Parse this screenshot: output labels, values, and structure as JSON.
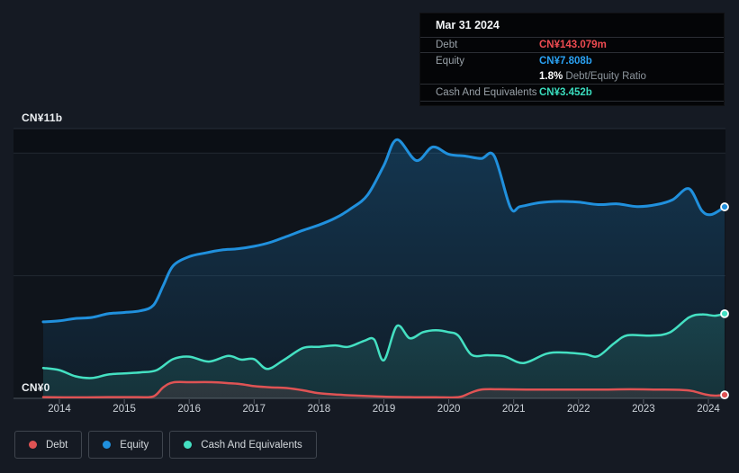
{
  "page": {
    "background": "#151a23",
    "plot_background": "#0f141b"
  },
  "tooltip": {
    "date": "Mar 31 2024",
    "debt_label": "Debt",
    "debt_value": "CN¥143.079m",
    "equity_label": "Equity",
    "equity_value": "CN¥7.808b",
    "ratio_value": "1.8%",
    "ratio_label": "Debt/Equity Ratio",
    "cash_label": "Cash And Equivalents",
    "cash_value": "CN¥3.452b",
    "colors": {
      "debt": "#ef4b51",
      "equity": "#2aa1f2",
      "cash": "#3adcbd"
    }
  },
  "axis": {
    "y_top_label": "CN¥11b",
    "y_zero_label": "CN¥0",
    "x_labels": [
      "2014",
      "2015",
      "2016",
      "2017",
      "2018",
      "2019",
      "2020",
      "2021",
      "2022",
      "2023",
      "2024"
    ]
  },
  "legend": {
    "items": [
      {
        "label": "Debt",
        "color": "#df5354"
      },
      {
        "label": "Equity",
        "color": "#2090dd"
      },
      {
        "label": "Cash And Equivalents",
        "color": "#44e0c2"
      }
    ]
  },
  "chart_data": {
    "type": "area",
    "x_unit": "year",
    "x_range": [
      2013.75,
      2024.25
    ],
    "y_unit": "CN¥ billions",
    "y_range": [
      0,
      11
    ],
    "gridlines_y": [
      11,
      10,
      5,
      0
    ],
    "x_ticks": [
      2014,
      2015,
      2016,
      2017,
      2018,
      2019,
      2020,
      2021,
      2022,
      2023,
      2024
    ],
    "legend_position": "bottom-left",
    "series": [
      {
        "name": "Equity",
        "color": "#2090dd",
        "line_width": 3,
        "points": [
          [
            2013.75,
            3.12
          ],
          [
            2014,
            3.16
          ],
          [
            2014.25,
            3.26
          ],
          [
            2014.5,
            3.3
          ],
          [
            2014.75,
            3.45
          ],
          [
            2015,
            3.5
          ],
          [
            2015.25,
            3.57
          ],
          [
            2015.45,
            3.8
          ],
          [
            2015.6,
            4.6
          ],
          [
            2015.75,
            5.4
          ],
          [
            2016,
            5.78
          ],
          [
            2016.25,
            5.93
          ],
          [
            2016.5,
            6.05
          ],
          [
            2016.75,
            6.1
          ],
          [
            2017,
            6.2
          ],
          [
            2017.25,
            6.36
          ],
          [
            2017.5,
            6.6
          ],
          [
            2017.75,
            6.85
          ],
          [
            2018,
            7.07
          ],
          [
            2018.25,
            7.35
          ],
          [
            2018.5,
            7.75
          ],
          [
            2018.75,
            8.3
          ],
          [
            2019,
            9.5
          ],
          [
            2019.2,
            10.55
          ],
          [
            2019.5,
            9.7
          ],
          [
            2019.75,
            10.25
          ],
          [
            2020,
            9.95
          ],
          [
            2020.25,
            9.88
          ],
          [
            2020.5,
            9.78
          ],
          [
            2020.7,
            9.88
          ],
          [
            2020.95,
            7.78
          ],
          [
            2021.1,
            7.82
          ],
          [
            2021.4,
            7.98
          ],
          [
            2021.7,
            8.03
          ],
          [
            2022,
            8.0
          ],
          [
            2022.3,
            7.9
          ],
          [
            2022.6,
            7.93
          ],
          [
            2022.9,
            7.82
          ],
          [
            2023.2,
            7.9
          ],
          [
            2023.45,
            8.1
          ],
          [
            2023.7,
            8.55
          ],
          [
            2023.9,
            7.65
          ],
          [
            2024.05,
            7.5
          ],
          [
            2024.25,
            7.808
          ]
        ]
      },
      {
        "name": "Cash And Equivalents",
        "color": "#44e0c2",
        "line_width": 2.5,
        "points": [
          [
            2013.75,
            1.24
          ],
          [
            2014,
            1.15
          ],
          [
            2014.25,
            0.9
          ],
          [
            2014.5,
            0.83
          ],
          [
            2014.75,
            0.97
          ],
          [
            2015,
            1.02
          ],
          [
            2015.25,
            1.06
          ],
          [
            2015.5,
            1.15
          ],
          [
            2015.75,
            1.6
          ],
          [
            2016,
            1.7
          ],
          [
            2016.3,
            1.5
          ],
          [
            2016.6,
            1.73
          ],
          [
            2016.8,
            1.58
          ],
          [
            2017,
            1.6
          ],
          [
            2017.2,
            1.2
          ],
          [
            2017.45,
            1.55
          ],
          [
            2017.75,
            2.05
          ],
          [
            2018,
            2.1
          ],
          [
            2018.25,
            2.16
          ],
          [
            2018.45,
            2.1
          ],
          [
            2018.7,
            2.35
          ],
          [
            2018.85,
            2.4
          ],
          [
            2019,
            1.55
          ],
          [
            2019.2,
            2.95
          ],
          [
            2019.4,
            2.45
          ],
          [
            2019.6,
            2.7
          ],
          [
            2019.8,
            2.78
          ],
          [
            2020,
            2.7
          ],
          [
            2020.15,
            2.55
          ],
          [
            2020.35,
            1.78
          ],
          [
            2020.6,
            1.76
          ],
          [
            2020.85,
            1.72
          ],
          [
            2021.15,
            1.44
          ],
          [
            2021.5,
            1.82
          ],
          [
            2021.75,
            1.87
          ],
          [
            2022.1,
            1.8
          ],
          [
            2022.3,
            1.72
          ],
          [
            2022.55,
            2.25
          ],
          [
            2022.75,
            2.57
          ],
          [
            2023.1,
            2.56
          ],
          [
            2023.4,
            2.68
          ],
          [
            2023.7,
            3.3
          ],
          [
            2023.9,
            3.42
          ],
          [
            2024.1,
            3.37
          ],
          [
            2024.25,
            3.452
          ]
        ]
      },
      {
        "name": "Debt",
        "color": "#df5354",
        "line_width": 2.5,
        "points": [
          [
            2013.75,
            0.05
          ],
          [
            2014.25,
            0.04
          ],
          [
            2014.75,
            0.05
          ],
          [
            2015.2,
            0.05
          ],
          [
            2015.45,
            0.08
          ],
          [
            2015.6,
            0.45
          ],
          [
            2015.75,
            0.65
          ],
          [
            2016,
            0.66
          ],
          [
            2016.35,
            0.66
          ],
          [
            2016.6,
            0.62
          ],
          [
            2016.8,
            0.58
          ],
          [
            2017,
            0.5
          ],
          [
            2017.25,
            0.45
          ],
          [
            2017.5,
            0.42
          ],
          [
            2017.75,
            0.33
          ],
          [
            2018,
            0.21
          ],
          [
            2018.3,
            0.15
          ],
          [
            2018.6,
            0.11
          ],
          [
            2019,
            0.07
          ],
          [
            2019.4,
            0.05
          ],
          [
            2019.8,
            0.045
          ],
          [
            2020.15,
            0.05
          ],
          [
            2020.33,
            0.22
          ],
          [
            2020.5,
            0.36
          ],
          [
            2020.8,
            0.37
          ],
          [
            2021.2,
            0.36
          ],
          [
            2021.6,
            0.36
          ],
          [
            2022,
            0.36
          ],
          [
            2022.4,
            0.36
          ],
          [
            2022.8,
            0.37
          ],
          [
            2023.2,
            0.36
          ],
          [
            2023.55,
            0.35
          ],
          [
            2023.75,
            0.3
          ],
          [
            2023.95,
            0.16
          ],
          [
            2024.1,
            0.11
          ],
          [
            2024.25,
            0.143
          ]
        ]
      }
    ]
  }
}
